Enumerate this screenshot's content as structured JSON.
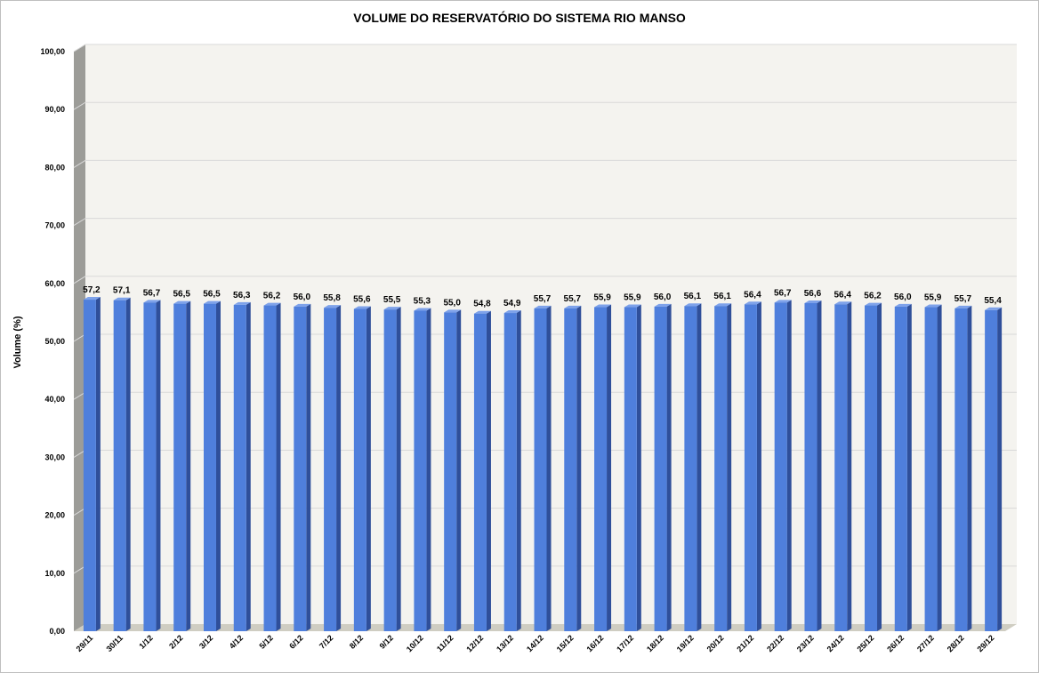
{
  "chart_data": {
    "type": "bar",
    "title": "VOLUME DO RESERVATÓRIO DO SISTEMA RIO MANSO",
    "xlabel": "",
    "ylabel": "Volume (%)",
    "ylim": [
      0,
      100
    ],
    "ytick_values": [
      0,
      10,
      20,
      30,
      40,
      50,
      60,
      70,
      80,
      90,
      100
    ],
    "ytick_labels": [
      "0,00",
      "10,00",
      "20,00",
      "30,00",
      "40,00",
      "50,00",
      "60,00",
      "70,00",
      "80,00",
      "90,00",
      "100,00"
    ],
    "grid": true,
    "legend": "none",
    "categories": [
      "29/11",
      "30/11",
      "1/12",
      "2/12",
      "3/12",
      "4/12",
      "5/12",
      "6/12",
      "7/12",
      "8/12",
      "9/12",
      "10/12",
      "11/12",
      "12/12",
      "13/12",
      "14/12",
      "15/12",
      "16/12",
      "17/12",
      "18/12",
      "19/12",
      "20/12",
      "21/12",
      "22/12",
      "23/12",
      "24/12",
      "25/12",
      "26/12",
      "27/12",
      "28/12",
      "29/12"
    ],
    "values": [
      57.2,
      57.1,
      56.7,
      56.5,
      56.5,
      56.3,
      56.2,
      56.0,
      55.8,
      55.6,
      55.5,
      55.3,
      55.0,
      54.8,
      54.9,
      55.7,
      55.7,
      55.9,
      55.9,
      56.0,
      56.1,
      56.1,
      56.4,
      56.7,
      56.6,
      56.4,
      56.2,
      56.0,
      55.9,
      55.7,
      55.4
    ],
    "data_labels": [
      "57,2",
      "57,1",
      "56,7",
      "56,5",
      "56,5",
      "56,3",
      "56,2",
      "56,0",
      "55,8",
      "55,6",
      "55,5",
      "55,3",
      "55,0",
      "54,8",
      "54,9",
      "55,7",
      "55,7",
      "55,9",
      "55,9",
      "56,0",
      "56,1",
      "56,1",
      "56,4",
      "56,7",
      "56,6",
      "56,4",
      "56,2",
      "56,0",
      "55,9",
      "55,7",
      "55,4"
    ],
    "colors": {
      "bar_front": "#4f7fdc",
      "bar_side": "#2f4f9a",
      "bar_top": "#7ea2ea",
      "plot_back": "#f4f3ef",
      "left_wall": "#9c9c98",
      "floor": "#cfcdc2",
      "gridline": "#d9d9d9"
    }
  }
}
